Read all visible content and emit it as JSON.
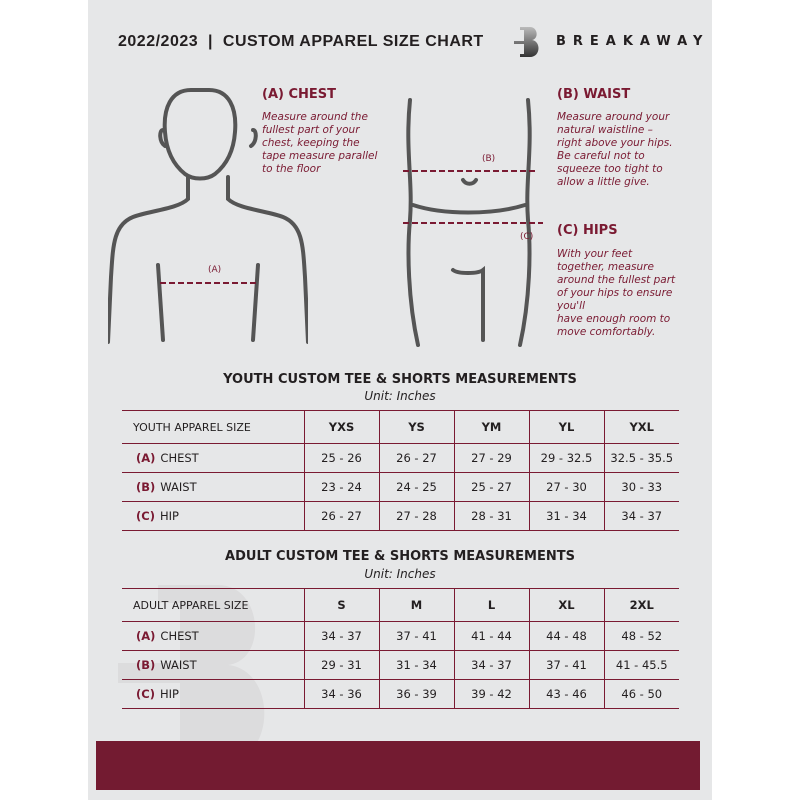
{
  "header": {
    "title": "2022/2023  |  CUSTOM APPAREL SIZE CHART",
    "brand": "BREAKAWAY",
    "logo_letter": "B"
  },
  "guide": {
    "chest": {
      "heading": "(A) CHEST",
      "marker": "(A)",
      "lines": [
        "Measure around the",
        "fullest part of your",
        "chest, keeping the",
        "tape measure parallel",
        "to the floor"
      ]
    },
    "waist": {
      "heading": "(B) WAIST",
      "marker": "(B)",
      "lines": [
        "Measure around your",
        "natural waistline –",
        "right above your hips.",
        "Be careful not to",
        "squeeze too tight to",
        "allow a little give."
      ]
    },
    "hips": {
      "heading": "(C) HIPS",
      "marker": "(C)",
      "lines": [
        "With your feet",
        "together, measure",
        "around the fullest part",
        "of your hips to ensure",
        "you'll",
        "have enough room to",
        "move comfortably."
      ]
    }
  },
  "youth": {
    "title": "YOUTH CUSTOM TEE & SHORTS MEASUREMENTS",
    "unit": "Unit: Inches",
    "size_label": "YOUTH APPAREL SIZE",
    "sizes": [
      "YXS",
      "YS",
      "YM",
      "YL",
      "YXL"
    ],
    "rows": [
      {
        "code": "(A)",
        "name": "CHEST",
        "values": [
          "25 - 26",
          "26 - 27",
          "27 - 29",
          "29 - 32.5",
          "32.5 - 35.5"
        ]
      },
      {
        "code": "(B)",
        "name": "WAIST",
        "values": [
          "23 - 24",
          "24 - 25",
          "25 - 27",
          "27 - 30",
          "30 - 33"
        ]
      },
      {
        "code": "(C)",
        "name": "HIP",
        "values": [
          "26 - 27",
          "27 - 28",
          "28 - 31",
          "31 - 34",
          "34 - 37"
        ]
      }
    ]
  },
  "adult": {
    "title": "ADULT CUSTOM TEE & SHORTS MEASUREMENTS",
    "unit": "Unit: Inches",
    "size_label": "ADULT APPAREL SIZE",
    "sizes": [
      "S",
      "M",
      "L",
      "XL",
      "2XL"
    ],
    "rows": [
      {
        "code": "(A)",
        "name": "CHEST",
        "values": [
          "34 - 37",
          "37 - 41",
          "41 - 44",
          "44 - 48",
          "48 - 52"
        ]
      },
      {
        "code": "(B)",
        "name": "WAIST",
        "values": [
          "29 - 31",
          "31 - 34",
          "34 - 37",
          "37 - 41",
          "41 - 45.5"
        ]
      },
      {
        "code": "(C)",
        "name": "HIP",
        "values": [
          "34 - 36",
          "36 - 39",
          "39 - 42",
          "43 - 46",
          "46 - 50"
        ]
      }
    ]
  },
  "colors": {
    "accent": "#731b31",
    "background": "#e6e7e8",
    "text": "#231f20"
  }
}
